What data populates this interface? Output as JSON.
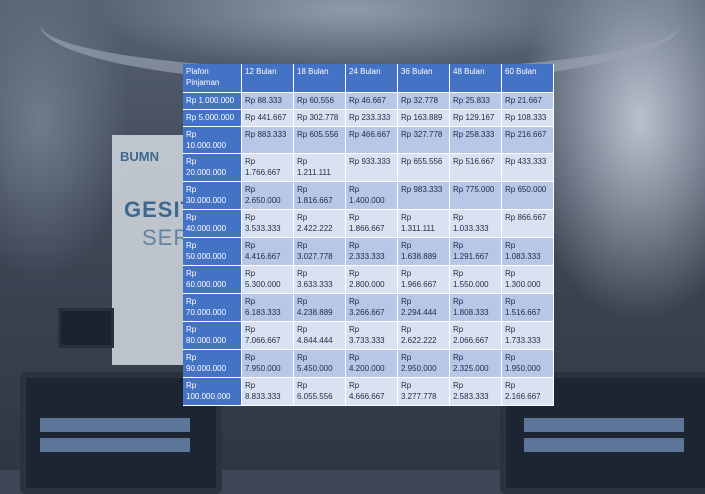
{
  "background": {
    "banner_logo": "BUMN",
    "banner_text_1": "GESIT",
    "banner_text_2": "SERA"
  },
  "table": {
    "headers": [
      "Plafon Pinjaman",
      "12 Bulan",
      "18 Bulan",
      "24 Bulan",
      "36 Bulan",
      "48 Bulan",
      "60 Bulan"
    ],
    "rows": [
      [
        "Rp 1.000.000",
        "Rp 88.333",
        "Rp 60.556",
        "Rp 46.667",
        "Rp 32.778",
        "Rp 25.833",
        "Rp 21.667"
      ],
      [
        "Rp 5.000.000",
        "Rp 441.667",
        "Rp 302.778",
        "Rp 233.333",
        "Rp 163.889",
        "Rp 129.167",
        "Rp 108.333"
      ],
      [
        "Rp 10.000.000",
        "Rp 883.333",
        "Rp 605.556",
        "Rp 466.667",
        "Rp 327.778",
        "Rp 258.333",
        "Rp 216.667"
      ],
      [
        "Rp 20.000.000",
        "Rp 1.766.667",
        "Rp 1.211.111",
        "Rp 933.333",
        "Rp 655.556",
        "Rp 516.667",
        "Rp 433.333"
      ],
      [
        "Rp 30.000.000",
        "Rp 2.650.000",
        "Rp 1.816.667",
        "Rp 1.400.000",
        "Rp 983.333",
        "Rp 775.000",
        "Rp 650.000"
      ],
      [
        "Rp 40.000.000",
        "Rp 3.533.333",
        "Rp 2.422.222",
        "Rp 1.866.667",
        "Rp 1.311.111",
        "Rp 1.033.333",
        "Rp 866.667"
      ],
      [
        "Rp 50.000.000",
        "Rp 4.416.667",
        "Rp 3.027.778",
        "Rp 2.333.333",
        "Rp 1.638.889",
        "Rp 1.291.667",
        "Rp 1.083.333"
      ],
      [
        "Rp 60.000.000",
        "Rp 5.300.000",
        "Rp 3.633.333",
        "Rp 2.800.000",
        "Rp 1.966.667",
        "Rp 1.550.000",
        "Rp 1.300.000"
      ],
      [
        "Rp 70.000.000",
        "Rp 6.183.333",
        "Rp 4.238.889",
        "Rp 3.266.667",
        "Rp 2.294.444",
        "Rp 1.808.333",
        "Rp 1.516.667"
      ],
      [
        "Rp 80.000.000",
        "Rp 7.066.667",
        "Rp 4.844.444",
        "Rp 3.733.333",
        "Rp 2.622.222",
        "Rp 2.066.667",
        "Rp 1.733.333"
      ],
      [
        "Rp 90.000.000",
        "Rp 7.950.000",
        "Rp 5.450.000",
        "Rp 4.200.000",
        "Rp 2.950.000",
        "Rp 2.325.000",
        "Rp 1.950.000"
      ],
      [
        "Rp 100.000.000",
        "Rp 8.833.333",
        "Rp 6.055.556",
        "Rp 4.666.667",
        "Rp 3.277.778",
        "Rp 2.583.333",
        "Rp 2.166.667"
      ]
    ],
    "tall_rows": [
      3,
      4,
      5,
      6,
      7,
      8,
      9,
      10,
      11
    ]
  }
}
